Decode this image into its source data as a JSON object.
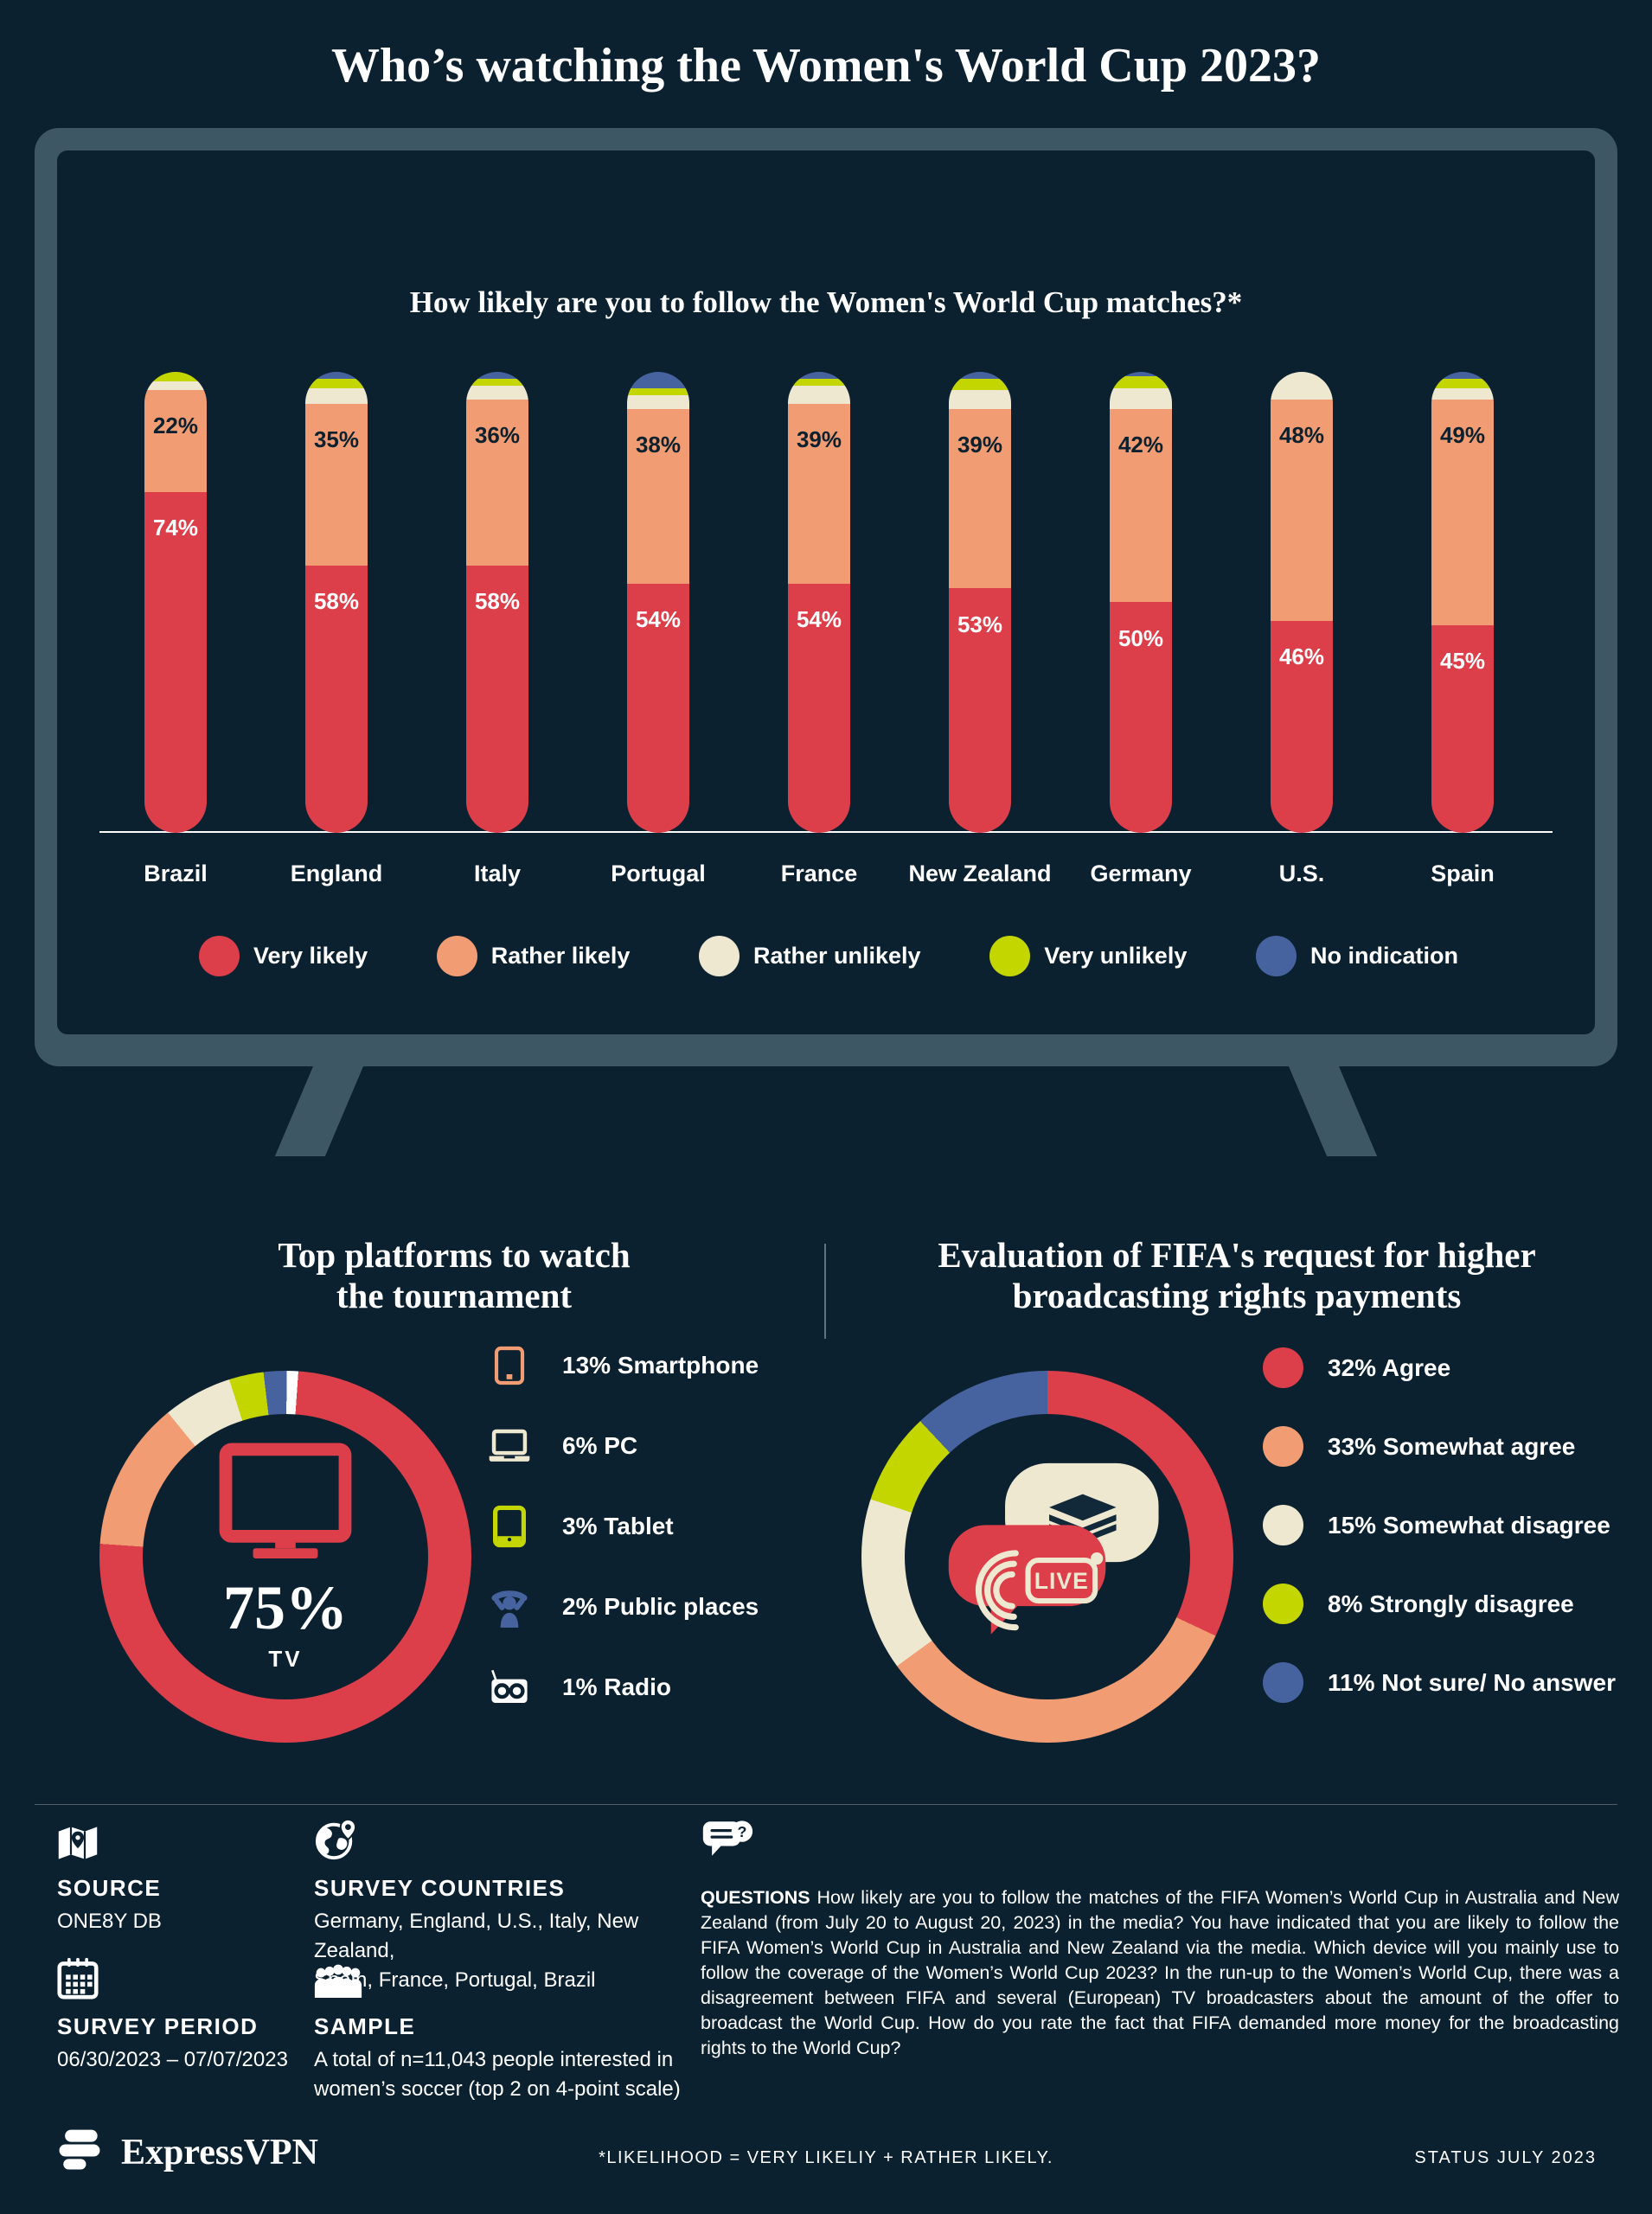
{
  "header": {
    "title": "Who’s watching the Women's World Cup 2023?"
  },
  "colors": {
    "background": "#0C2130",
    "tv_frame": "#3E5765",
    "red": "#DC3E4A",
    "orange": "#F19C72",
    "cream": "#EFE8D1",
    "green": "#C4D600",
    "blue": "#46639F",
    "white": "#FFFFFF"
  },
  "chart_data": [
    {
      "type": "bar",
      "variant": "stacked-rounded-columns",
      "title": "How likely are you to follow the Women's World Cup matches?*",
      "categories": [
        "Brazil",
        "England",
        "Italy",
        "Portugal",
        "France",
        "New Zealand",
        "Germany",
        "U.S.",
        "Spain"
      ],
      "series": [
        {
          "name": "Very likely",
          "color": "#DC3E4A",
          "label_color": "#FFFFFF",
          "show_labels": true,
          "values": [
            74,
            58,
            58,
            54,
            54,
            53,
            50,
            46,
            45
          ]
        },
        {
          "name": "Rather likely",
          "color": "#F19C72",
          "label_color": "#0C2130",
          "show_labels": true,
          "values": [
            22,
            35,
            36,
            38,
            39,
            39,
            42,
            48,
            49
          ]
        },
        {
          "name": "Rather unlikely",
          "color": "#EFE8D1",
          "show_labels": false,
          "values": [
            2,
            3.5,
            3,
            3,
            4,
            4,
            4.5,
            6,
            2.5
          ]
        },
        {
          "name": "Very unlikely",
          "color": "#C4D600",
          "show_labels": false,
          "values": [
            2,
            2,
            1.5,
            1.5,
            1.5,
            2.5,
            2.5,
            0,
            2
          ]
        },
        {
          "name": "No indication",
          "color": "#46639F",
          "show_labels": false,
          "values": [
            0,
            1.5,
            1.5,
            3.5,
            1.5,
            1.5,
            1,
            0,
            1.5
          ]
        }
      ],
      "ylim": [
        0,
        100
      ],
      "value_suffix": "%",
      "grid": false,
      "legend_position": "bottom"
    },
    {
      "type": "donut",
      "title": "Top platforms to watch the tournament",
      "center": {
        "value": "75%",
        "label": "TV",
        "icon": "tv-icon"
      },
      "slices": [
        {
          "label": "TV",
          "pct": 75,
          "color": "#DC3E4A"
        },
        {
          "label": "Smartphone",
          "pct": 13,
          "color": "#F19C72",
          "icon": "smartphone-icon",
          "legend": "13% Smartphone"
        },
        {
          "label": "PC",
          "pct": 6,
          "color": "#EFE8D1",
          "icon": "pc-icon",
          "legend": "6% PC"
        },
        {
          "label": "Tablet",
          "pct": 3,
          "color": "#C4D600",
          "icon": "tablet-icon",
          "legend": "3% Tablet"
        },
        {
          "label": "Public places",
          "pct": 2,
          "color": "#46639F",
          "icon": "public-places-icon",
          "legend": "2% Public places"
        },
        {
          "label": "Radio",
          "pct": 1,
          "color": "#FFFFFF",
          "icon": "radio-icon",
          "legend": "1% Radio"
        }
      ]
    },
    {
      "type": "donut",
      "title": "Evaluation of FIFA's request for higher broadcasting rights payments",
      "center_icon": "live-broadcast-money-icon",
      "slices": [
        {
          "label": "Agree",
          "pct": 32,
          "color": "#DC3E4A",
          "legend": "32% Agree"
        },
        {
          "label": "Somewhat agree",
          "pct": 33,
          "color": "#F19C72",
          "legend": "33% Somewhat agree"
        },
        {
          "label": "Somewhat disagree",
          "pct": 15,
          "color": "#EFE8D1",
          "legend": "15% Somewhat disagree"
        },
        {
          "label": "Strongly disagree",
          "pct": 8,
          "color": "#C4D600",
          "legend": "8% Strongly disagree"
        },
        {
          "label": "Not sure/ No answer",
          "pct": 11,
          "color": "#46639F",
          "legend": "11% Not sure/ No answer"
        }
      ]
    }
  ],
  "sections": {
    "platforms": {
      "title_lines": [
        "Top platforms to watch",
        "the tournament"
      ]
    },
    "fifa": {
      "title_lines": [
        "Evaluation of FIFA's request for higher",
        "broadcasting rights payments"
      ],
      "live_badge": "LIVE"
    }
  },
  "footer": {
    "source": {
      "heading": "SOURCE",
      "text": "ONE8Y DB",
      "icon": "map-icon"
    },
    "survey_countries": {
      "heading": "SURVEY COUNTRIES",
      "icon": "globe-icon",
      "lines": [
        "Germany, England, U.S., Italy, New Zealand,",
        "Spain, France, Portugal, Brazil"
      ]
    },
    "survey_period": {
      "heading": "SURVEY PERIOD",
      "text": "06/30/2023 – 07/07/2023",
      "icon": "calendar-icon"
    },
    "sample": {
      "heading": "SAMPLE",
      "icon": "people-icon",
      "lines": [
        "A total of n=11,043 people interested in",
        "women’s soccer (top 2 on 4-point scale)"
      ]
    },
    "questions": {
      "heading": "QUESTIONS",
      "icon": "chat-question-icon",
      "text": "How likely are you to follow the matches of the FIFA Women’s World Cup in Australia and New Zealand (from July 20 to August 20, 2023) in the media? You have indicated that you are likely to follow the FIFA Women’s World Cup in Australia and New Zealand via the media. Which device will you mainly use to follow the coverage of the Women’s World Cup 2023? In the run-up to the Women’s World Cup, there was a disagreement between FIFA and several (European) TV broadcasters about the amount of the offer to broadcast the World Cup. How do you rate the fact that FIFA demanded more money for the broadcasting rights to the World Cup?"
    }
  },
  "footer_bar": {
    "brand": "ExpressVPN",
    "footnote": "*LIKELIHOOD = VERY LIKELIY + RATHER LIKELY.",
    "status": "STATUS JULY 2023"
  }
}
